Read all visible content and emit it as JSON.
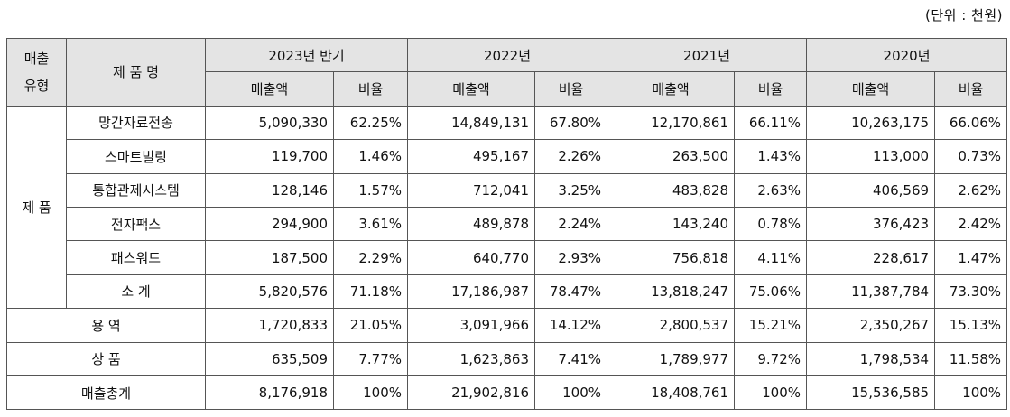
{
  "unit_note": "(단위 : 천원)",
  "header": {
    "category_col": "매출\n유형",
    "product_col": "제 품 명",
    "periods": [
      "2023년 반기",
      "2022년",
      "2021년",
      "2020년"
    ],
    "sales_label": "매출액",
    "ratio_label": "비율"
  },
  "product_group_label": "제 품",
  "product_rows": [
    {
      "name": "망간자료전송",
      "values": [
        "5,090,330",
        "62.25%",
        "14,849,131",
        "67.80%",
        "12,170,861",
        "66.11%",
        "10,263,175",
        "66.06%"
      ]
    },
    {
      "name": "스마트빌링",
      "values": [
        "119,700",
        "1.46%",
        "495,167",
        "2.26%",
        "263,500",
        "1.43%",
        "113,000",
        "0.73%"
      ]
    },
    {
      "name": "통합관제시스템",
      "values": [
        "128,146",
        "1.57%",
        "712,041",
        "3.25%",
        "483,828",
        "2.63%",
        "406,569",
        "2.62%"
      ]
    },
    {
      "name": "전자팩스",
      "values": [
        "294,900",
        "3.61%",
        "489,878",
        "2.24%",
        "143,240",
        "0.78%",
        "376,423",
        "2.42%"
      ]
    },
    {
      "name": "패스워드",
      "values": [
        "187,500",
        "2.29%",
        "640,770",
        "2.93%",
        "756,818",
        "4.11%",
        "228,617",
        "1.47%"
      ]
    },
    {
      "name": "소 계",
      "values": [
        "5,820,576",
        "71.18%",
        "17,186,987",
        "78.47%",
        "13,818,247",
        "75.06%",
        "11,387,784",
        "73.30%"
      ]
    }
  ],
  "summary_rows": [
    {
      "name": "용 역",
      "values": [
        "1,720,833",
        "21.05%",
        "3,091,966",
        "14.12%",
        "2,800,537",
        "15.21%",
        "2,350,267",
        "15.13%"
      ]
    },
    {
      "name": "상 품",
      "values": [
        "635,509",
        "7.77%",
        "1,623,863",
        "7.41%",
        "1,789,977",
        "9.72%",
        "1,798,534",
        "11.58%"
      ]
    },
    {
      "name": "매출총계",
      "values": [
        "8,176,918",
        "100%",
        "21,902,816",
        "100%",
        "18,408,761",
        "100%",
        "15,536,585",
        "100%"
      ]
    }
  ]
}
